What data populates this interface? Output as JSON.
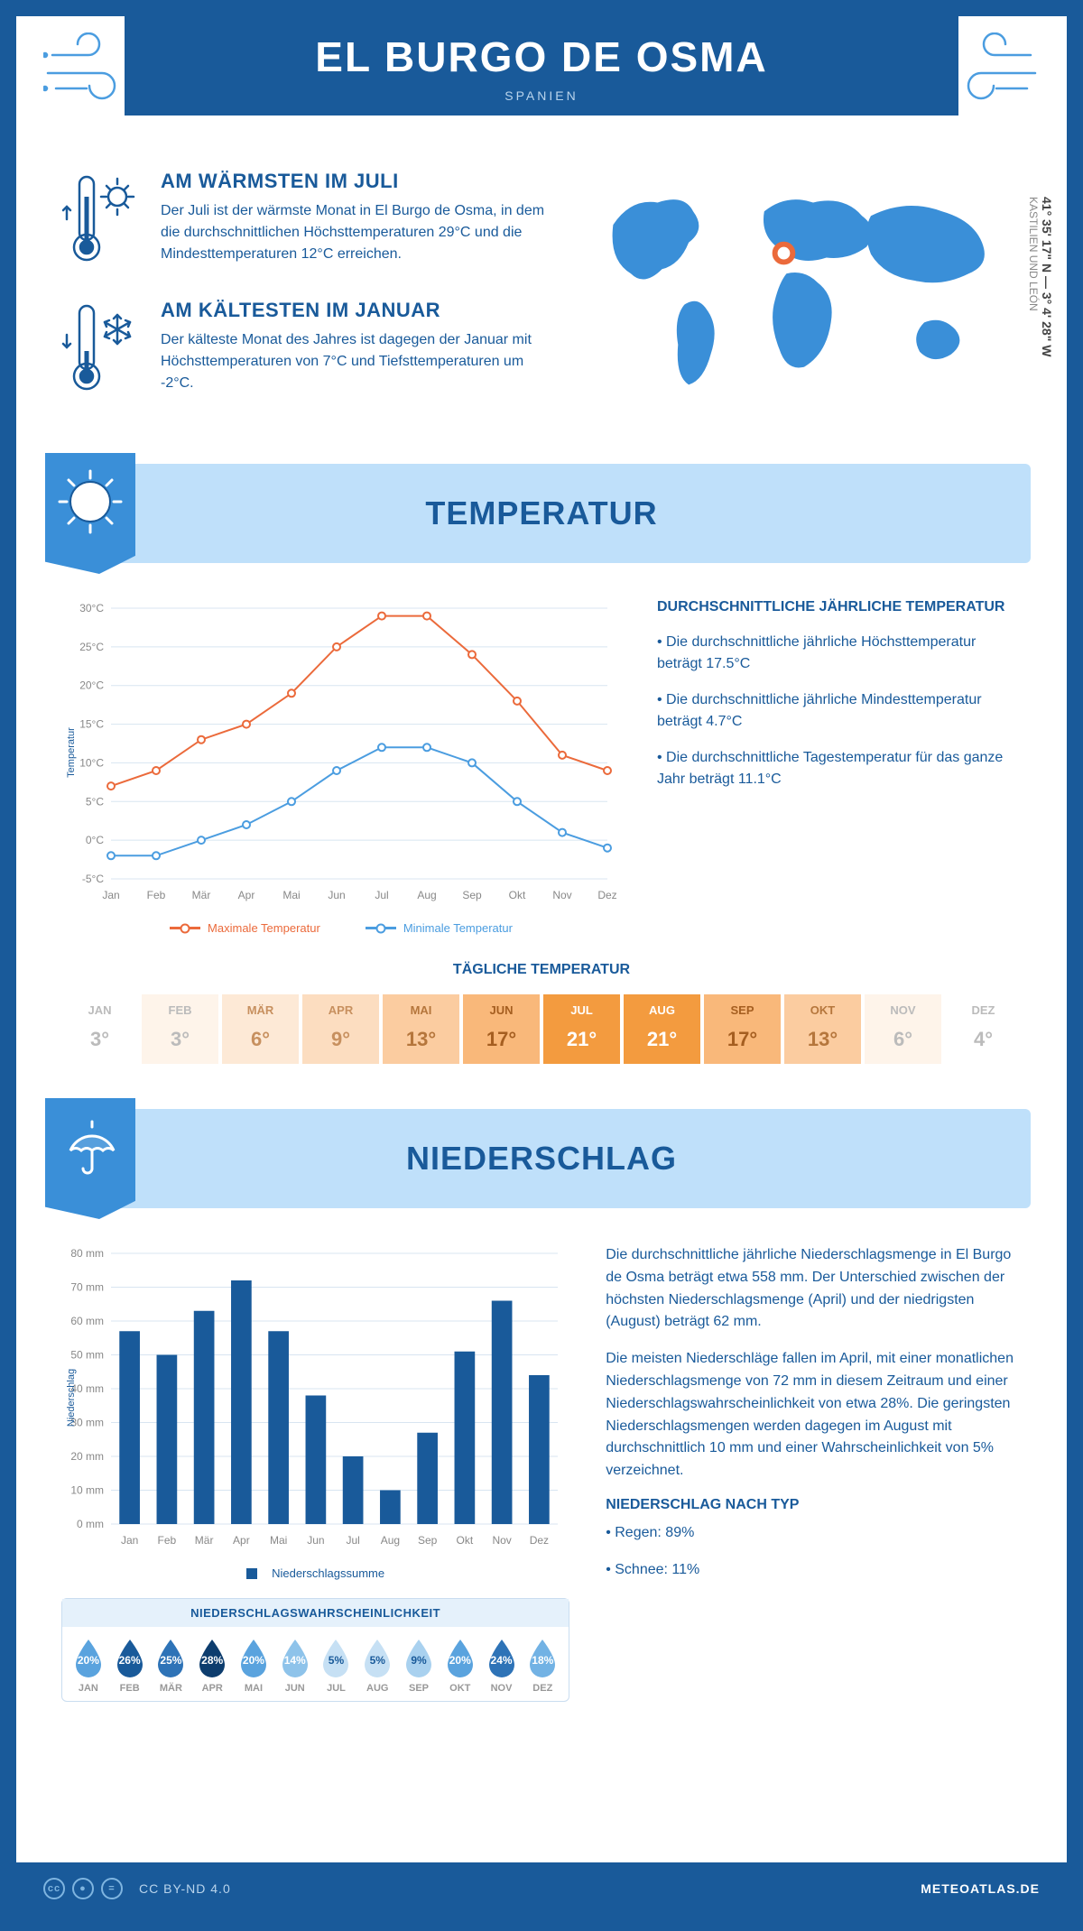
{
  "header": {
    "title": "EL BURGO DE OSMA",
    "country": "SPANIEN"
  },
  "coords": {
    "lat": "41° 35' 17\" N — 3° 4' 28\" W",
    "region": "KASTILIEN UND LEÓN"
  },
  "colors": {
    "brand": "#195a9a",
    "brand_light": "#3a8fd8",
    "band": "#bfe0fa",
    "max_line": "#eb6a3b",
    "min_line": "#4b9de0",
    "grid": "#d8e5f1",
    "bar": "#195a9a"
  },
  "warm": {
    "title": "AM WÄRMSTEN IM JULI",
    "text": "Der Juli ist der wärmste Monat in El Burgo de Osma, in dem die durchschnittlichen Höchsttemperaturen 29°C und die Mindesttemperaturen 12°C erreichen."
  },
  "cold": {
    "title": "AM KÄLTESTEN IM JANUAR",
    "text": "Der kälteste Monat des Jahres ist dagegen der Januar mit Höchsttemperaturen von 7°C und Tiefsttemperaturen um -2°C."
  },
  "temp_section": {
    "heading": "TEMPERATUR",
    "avg_title": "DURCHSCHNITTLICHE JÄHRLICHE TEMPERATUR",
    "b1": "• Die durchschnittliche jährliche Höchsttemperatur beträgt 17.5°C",
    "b2": "• Die durchschnittliche jährliche Mindesttemperatur beträgt 4.7°C",
    "b3": "• Die durchschnittliche Tagestemperatur für das ganze Jahr beträgt 11.1°C",
    "legend_max": "Maximale Temperatur",
    "legend_min": "Minimale Temperatur"
  },
  "temp_chart": {
    "type": "line",
    "months": [
      "Jan",
      "Feb",
      "Mär",
      "Apr",
      "Mai",
      "Jun",
      "Jul",
      "Aug",
      "Sep",
      "Okt",
      "Nov",
      "Dez"
    ],
    "max": [
      7,
      9,
      13,
      15,
      19,
      25,
      29,
      29,
      24,
      18,
      11,
      9
    ],
    "min": [
      -2,
      -2,
      0,
      2,
      5,
      9,
      12,
      12,
      10,
      5,
      1,
      -1
    ],
    "ylim": [
      -5,
      30
    ],
    "ystep": 5,
    "ylabel": "Temperatur",
    "yunit": "°C",
    "max_color": "#eb6a3b",
    "min_color": "#4b9de0",
    "grid_color": "#d8e5f1",
    "line_width": 2,
    "marker": "circle",
    "marker_size": 4,
    "background": "#ffffff"
  },
  "daily": {
    "title": "TÄGLICHE TEMPERATUR",
    "cells": [
      {
        "m": "JAN",
        "v": "3°",
        "bg": "#ffffff",
        "fg": "#bbbbbb"
      },
      {
        "m": "FEB",
        "v": "3°",
        "bg": "#fef4ea",
        "fg": "#bbbbbb"
      },
      {
        "m": "MÄR",
        "v": "6°",
        "bg": "#fde9d6",
        "fg": "#c7905f"
      },
      {
        "m": "APR",
        "v": "9°",
        "bg": "#fcddc0",
        "fg": "#c7905f"
      },
      {
        "m": "MAI",
        "v": "13°",
        "bg": "#fbcca0",
        "fg": "#b5763c"
      },
      {
        "m": "JUN",
        "v": "17°",
        "bg": "#f9b87a",
        "fg": "#a55e20"
      },
      {
        "m": "JUL",
        "v": "21°",
        "bg": "#f39b3f",
        "fg": "#ffffff"
      },
      {
        "m": "AUG",
        "v": "21°",
        "bg": "#f39b3f",
        "fg": "#ffffff"
      },
      {
        "m": "SEP",
        "v": "17°",
        "bg": "#f9b87a",
        "fg": "#a55e20"
      },
      {
        "m": "OKT",
        "v": "13°",
        "bg": "#fbcca0",
        "fg": "#b5763c"
      },
      {
        "m": "NOV",
        "v": "6°",
        "bg": "#fef4ea",
        "fg": "#bbbbbb"
      },
      {
        "m": "DEZ",
        "v": "4°",
        "bg": "#ffffff",
        "fg": "#bbbbbb"
      }
    ]
  },
  "precip_section": {
    "heading": "NIEDERSCHLAG",
    "p1": "Die durchschnittliche jährliche Niederschlagsmenge in El Burgo de Osma beträgt etwa 558 mm. Der Unterschied zwischen der höchsten Niederschlagsmenge (April) und der niedrigsten (August) beträgt 62 mm.",
    "p2": "Die meisten Niederschläge fallen im April, mit einer monatlichen Niederschlagsmenge von 72 mm in diesem Zeitraum und einer Niederschlagswahrscheinlichkeit von etwa 28%. Die geringsten Niederschlagsmengen werden dagegen im August mit durchschnittlich 10 mm und einer Wahrscheinlichkeit von 5% verzeichnet.",
    "type_title": "NIEDERSCHLAG NACH TYP",
    "type1": "• Regen: 89%",
    "type2": "• Schnee: 11%",
    "legend": "Niederschlagssumme"
  },
  "precip_chart": {
    "type": "bar",
    "months": [
      "Jan",
      "Feb",
      "Mär",
      "Apr",
      "Mai",
      "Jun",
      "Jul",
      "Aug",
      "Sep",
      "Okt",
      "Nov",
      "Dez"
    ],
    "values": [
      57,
      50,
      63,
      72,
      57,
      38,
      20,
      10,
      27,
      51,
      66,
      44
    ],
    "ylim": [
      0,
      80
    ],
    "ystep": 10,
    "ylabel": "Niederschlag",
    "yunit": " mm",
    "bar_color": "#195a9a",
    "grid_color": "#d8e5f1",
    "bar_width": 0.55,
    "background": "#ffffff"
  },
  "prob": {
    "title": "NIEDERSCHLAGSWAHRSCHEINLICHKEIT",
    "items": [
      {
        "m": "JAN",
        "v": "20%",
        "shade": "#5aa3de"
      },
      {
        "m": "FEB",
        "v": "26%",
        "shade": "#195a9a"
      },
      {
        "m": "MÄR",
        "v": "25%",
        "shade": "#2e73b7"
      },
      {
        "m": "APR",
        "v": "28%",
        "shade": "#0d3d6e"
      },
      {
        "m": "MAI",
        "v": "20%",
        "shade": "#5aa3de"
      },
      {
        "m": "JUN",
        "v": "14%",
        "shade": "#8ec3ea"
      },
      {
        "m": "JUL",
        "v": "5%",
        "shade": "#c6e0f4"
      },
      {
        "m": "AUG",
        "v": "5%",
        "shade": "#c6e0f4"
      },
      {
        "m": "SEP",
        "v": "9%",
        "shade": "#a9d1ef"
      },
      {
        "m": "OKT",
        "v": "20%",
        "shade": "#5aa3de"
      },
      {
        "m": "NOV",
        "v": "24%",
        "shade": "#2e73b7"
      },
      {
        "m": "DEZ",
        "v": "18%",
        "shade": "#72b2e4"
      }
    ]
  },
  "footer": {
    "license": "CC BY-ND 4.0",
    "site": "METEOATLAS.DE"
  }
}
